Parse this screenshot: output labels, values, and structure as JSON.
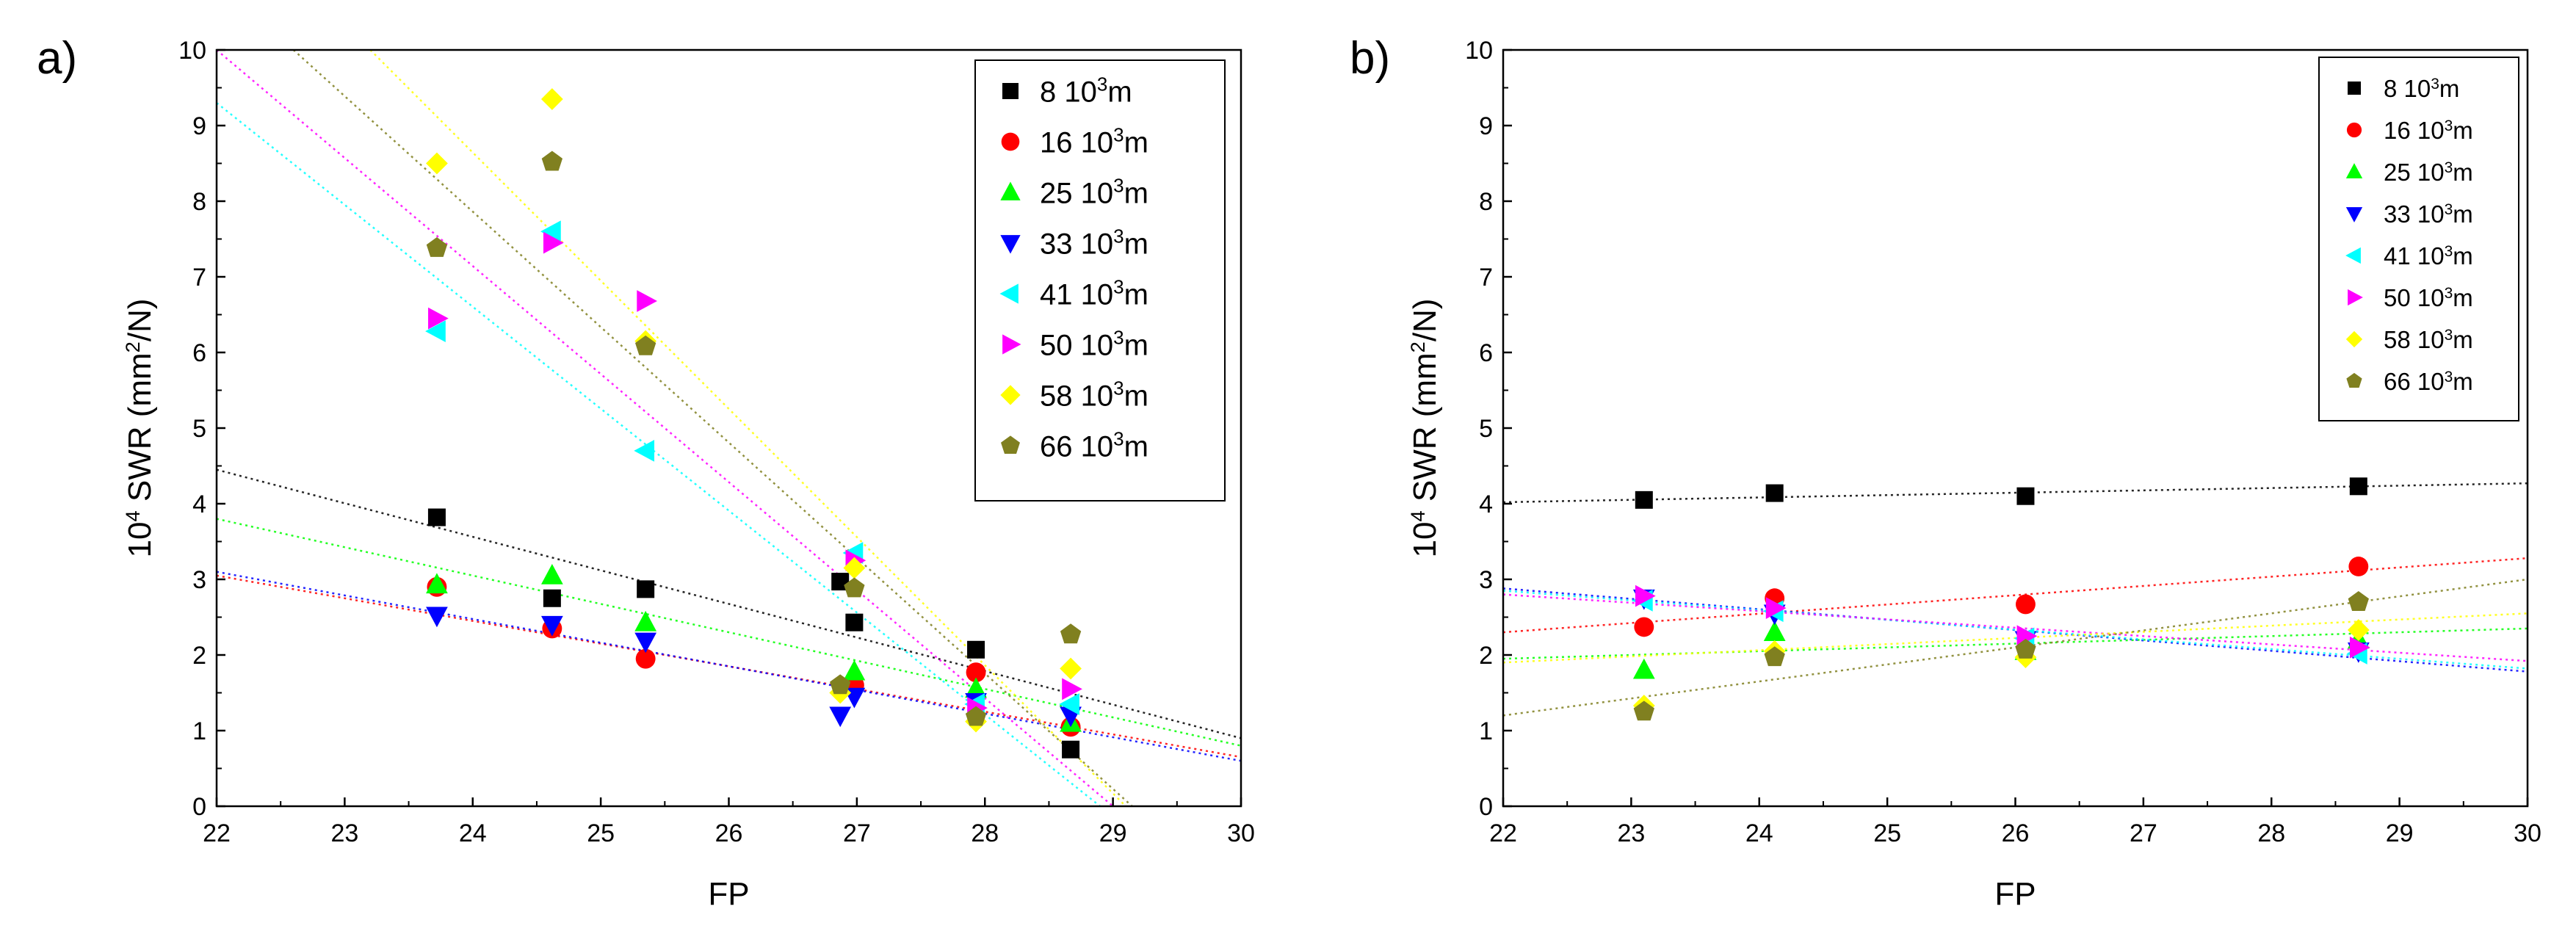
{
  "chart_data": [
    {
      "type": "scatter",
      "panel_label": "a)",
      "title": "",
      "xlabel": "FP",
      "ylabel": "10<sup>4</sup> SWR (mm<sup>2</sup>/N)",
      "ylabel_parts": {
        "a": "10",
        "b": "4",
        "c": " SWR (mm",
        "d": "2",
        "e": "/N)"
      },
      "xlabel_text": "FP",
      "xlim": [
        22,
        30
      ],
      "ylim": [
        0,
        10
      ],
      "xticks": [
        "22",
        "23",
        "24",
        "25",
        "26",
        "27",
        "28",
        "29",
        "30"
      ],
      "yticks": [
        "0",
        "1",
        "2",
        "3",
        "4",
        "5",
        "6",
        "7",
        "8",
        "9",
        "10"
      ],
      "legend_position": "top-right",
      "grid": false,
      "series": [
        {
          "name": "8 10³m",
          "label_num": "8 10",
          "sup": "3",
          "unit": "m",
          "color": "#000000",
          "marker": "square",
          "points": [
            [
              23.72,
              3.82
            ],
            [
              24.62,
              2.75
            ],
            [
              25.35,
              2.87
            ],
            [
              26.87,
              2.97
            ],
            [
              26.98,
              2.43
            ],
            [
              27.93,
              2.07
            ],
            [
              28.67,
              0.75
            ]
          ],
          "fit": [
            [
              22,
              4.45
            ],
            [
              30,
              0.9
            ]
          ]
        },
        {
          "name": "16 10³m",
          "label_num": "16 10",
          "sup": "3",
          "unit": "m",
          "color": "#ff0000",
          "marker": "circle",
          "points": [
            [
              23.72,
              2.9
            ],
            [
              24.62,
              2.35
            ],
            [
              25.35,
              1.95
            ],
            [
              26.98,
              1.6
            ],
            [
              27.93,
              1.77
            ],
            [
              28.67,
              1.05
            ]
          ],
          "fit": [
            [
              22,
              3.05
            ],
            [
              30,
              0.65
            ]
          ]
        },
        {
          "name": "25 10³m",
          "label_num": "25 10",
          "sup": "3",
          "unit": "m",
          "color": "#00ff00",
          "marker": "triangle-up",
          "points": [
            [
              23.72,
              2.93
            ],
            [
              24.62,
              3.05
            ],
            [
              25.35,
              2.43
            ],
            [
              26.98,
              1.78
            ],
            [
              27.93,
              1.55
            ],
            [
              28.67,
              1.1
            ]
          ],
          "fit": [
            [
              22,
              3.8
            ],
            [
              30,
              0.8
            ]
          ]
        },
        {
          "name": "33 10³m",
          "label_num": "33 10",
          "sup": "3",
          "unit": "m",
          "color": "#0000ff",
          "marker": "triangle-down",
          "points": [
            [
              23.72,
              2.52
            ],
            [
              24.62,
              2.4
            ],
            [
              25.35,
              2.18
            ],
            [
              26.87,
              1.2
            ],
            [
              26.98,
              1.45
            ],
            [
              27.93,
              1.38
            ],
            [
              28.67,
              1.2
            ]
          ],
          "fit": [
            [
              22,
              3.1
            ],
            [
              30,
              0.6
            ]
          ]
        },
        {
          "name": "41 10³m",
          "label_num": "41 10",
          "sup": "3",
          "unit": "m",
          "color": "#00ffff",
          "marker": "triangle-left",
          "points": [
            [
              23.72,
              6.28
            ],
            [
              24.62,
              7.6
            ],
            [
              25.35,
              4.7
            ],
            [
              26.98,
              3.35
            ],
            [
              27.93,
              1.35
            ],
            [
              28.67,
              1.35
            ]
          ],
          "fit": [
            [
              22,
              9.3
            ],
            [
              28.9,
              0.0
            ]
          ]
        },
        {
          "name": "50 10³m",
          "label_num": "50 10",
          "sup": "3",
          "unit": "m",
          "color": "#ff00ff",
          "marker": "triangle-right",
          "points": [
            [
              23.72,
              6.45
            ],
            [
              24.62,
              7.45
            ],
            [
              25.35,
              6.68
            ],
            [
              26.98,
              3.25
            ],
            [
              27.93,
              1.3
            ],
            [
              28.67,
              1.55
            ]
          ],
          "fit": [
            [
              22,
              10.0
            ],
            [
              29.0,
              0.0
            ]
          ]
        },
        {
          "name": "58 10³m",
          "label_num": "58 10",
          "sup": "3",
          "unit": "m",
          "color": "#ffff00",
          "marker": "diamond",
          "points": [
            [
              23.72,
              8.5
            ],
            [
              24.62,
              9.35
            ],
            [
              25.35,
              6.15
            ],
            [
              26.87,
              1.5
            ],
            [
              26.98,
              3.15
            ],
            [
              27.93,
              1.12
            ],
            [
              28.67,
              1.82
            ]
          ],
          "fit": [
            [
              23.2,
              10.0
            ],
            [
              29.1,
              0.0
            ]
          ]
        },
        {
          "name": "66 10³m",
          "label_num": "66 10",
          "sup": "3",
          "unit": "m",
          "color": "#808020",
          "marker": "pentagon",
          "points": [
            [
              23.72,
              7.38
            ],
            [
              24.62,
              8.52
            ],
            [
              25.35,
              6.08
            ],
            [
              26.87,
              1.6
            ],
            [
              26.98,
              2.88
            ],
            [
              27.93,
              1.18
            ],
            [
              28.67,
              2.27
            ]
          ],
          "fit": [
            [
              22.6,
              10.0
            ],
            [
              29.15,
              0.0
            ]
          ]
        }
      ]
    },
    {
      "type": "scatter",
      "panel_label": "b)",
      "title": "",
      "xlabel_text": "FP",
      "ylabel_parts": {
        "a": "10",
        "b": "4",
        "c": " SWR (mm",
        "d": "2",
        "e": "/N)"
      },
      "xlim": [
        22,
        30
      ],
      "ylim": [
        0,
        10
      ],
      "xticks": [
        "22",
        "23",
        "24",
        "25",
        "26",
        "27",
        "28",
        "29",
        "30"
      ],
      "yticks": [
        "0",
        "1",
        "2",
        "3",
        "4",
        "5",
        "6",
        "7",
        "8",
        "9",
        "10"
      ],
      "legend_position": "top-right",
      "grid": false,
      "series": [
        {
          "name": "8 10³m",
          "label_num": "8 10",
          "sup": "3",
          "unit": "m",
          "color": "#000000",
          "marker": "square",
          "points": [
            [
              23.1,
              4.05
            ],
            [
              24.12,
              4.14
            ],
            [
              26.08,
              4.1
            ],
            [
              28.68,
              4.23
            ]
          ],
          "fit": [
            [
              22,
              4.02
            ],
            [
              30,
              4.27
            ]
          ]
        },
        {
          "name": "16 10³m",
          "label_num": "16 10",
          "sup": "3",
          "unit": "m",
          "color": "#ff0000",
          "marker": "circle",
          "points": [
            [
              23.1,
              2.37
            ],
            [
              24.12,
              2.75
            ],
            [
              26.08,
              2.67
            ],
            [
              28.68,
              3.17
            ]
          ],
          "fit": [
            [
              22,
              2.3
            ],
            [
              30,
              3.28
            ]
          ]
        },
        {
          "name": "25 10³m",
          "label_num": "25 10",
          "sup": "3",
          "unit": "m",
          "color": "#00ff00",
          "marker": "triangle-up",
          "points": [
            [
              23.1,
              1.8
            ],
            [
              24.12,
              2.3
            ],
            [
              26.08,
              2.05
            ],
            [
              28.68,
              2.2
            ]
          ],
          "fit": [
            [
              22,
              1.95
            ],
            [
              30,
              2.35
            ]
          ]
        },
        {
          "name": "33 10³m",
          "label_num": "33 10",
          "sup": "3",
          "unit": "m",
          "color": "#0000ff",
          "marker": "triangle-down",
          "points": [
            [
              23.1,
              2.75
            ],
            [
              24.12,
              2.55
            ],
            [
              26.08,
              2.2
            ],
            [
              28.68,
              2.05
            ]
          ],
          "fit": [
            [
              22,
              2.88
            ],
            [
              30,
              1.78
            ]
          ]
        },
        {
          "name": "41 10³m",
          "label_num": "41 10",
          "sup": "3",
          "unit": "m",
          "color": "#00ffff",
          "marker": "triangle-left",
          "points": [
            [
              23.1,
              2.72
            ],
            [
              24.12,
              2.58
            ],
            [
              26.08,
              2.22
            ],
            [
              28.68,
              2.02
            ]
          ],
          "fit": [
            [
              22,
              2.85
            ],
            [
              30,
              1.82
            ]
          ]
        },
        {
          "name": "50 10³m",
          "label_num": "50 10",
          "sup": "3",
          "unit": "m",
          "color": "#ff00ff",
          "marker": "triangle-right",
          "points": [
            [
              23.1,
              2.78
            ],
            [
              24.12,
              2.62
            ],
            [
              26.08,
              2.25
            ],
            [
              28.68,
              2.1
            ]
          ],
          "fit": [
            [
              22,
              2.8
            ],
            [
              30,
              1.92
            ]
          ]
        },
        {
          "name": "58 10³m",
          "label_num": "58 10",
          "sup": "3",
          "unit": "m",
          "color": "#ffff00",
          "marker": "diamond",
          "points": [
            [
              23.1,
              1.33
            ],
            [
              24.12,
              2.05
            ],
            [
              26.08,
              1.97
            ],
            [
              28.68,
              2.33
            ]
          ],
          "fit": [
            [
              22,
              1.9
            ],
            [
              30,
              2.55
            ]
          ]
        },
        {
          "name": "66 10³m",
          "label_num": "66 10",
          "sup": "3",
          "unit": "m",
          "color": "#808020",
          "marker": "pentagon",
          "points": [
            [
              23.1,
              1.25
            ],
            [
              24.12,
              1.97
            ],
            [
              26.08,
              2.07
            ],
            [
              28.68,
              2.7
            ]
          ],
          "fit": [
            [
              22,
              1.2
            ],
            [
              30,
              3.0
            ]
          ]
        }
      ]
    }
  ]
}
